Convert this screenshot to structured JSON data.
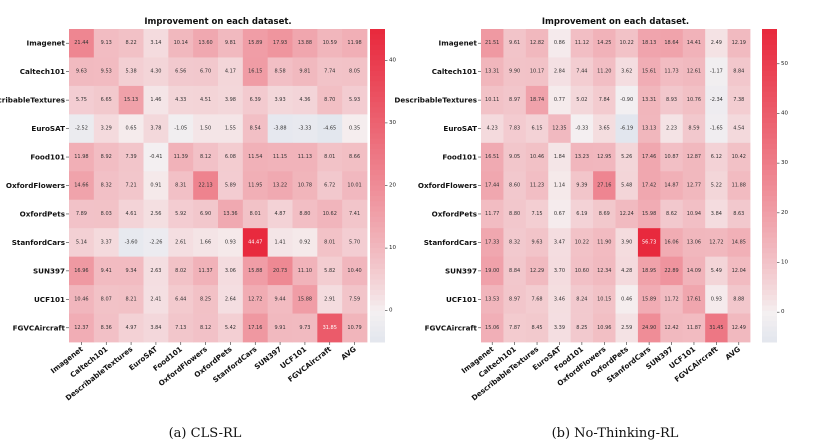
{
  "chart_data": [
    {
      "type": "heatmap",
      "title": "Improvement on each dataset.",
      "caption": "(a) CLS-RL",
      "rows": [
        "Imagenet",
        "Caltech101",
        "DescribableTextures",
        "EuroSAT",
        "Food101",
        "OxfordFlowers",
        "OxfordPets",
        "StanfordCars",
        "SUN397",
        "UCF101",
        "FGVCAircraft"
      ],
      "columns": [
        "Imagenet",
        "Caltech101",
        "DescribableTextures",
        "EuroSAT",
        "Food101",
        "OxfordFlowers",
        "OxfordPets",
        "StanfordCars",
        "SUN397",
        "UCF101",
        "FGVCAircraft",
        "AVG"
      ],
      "values": [
        [
          21.44,
          9.13,
          8.22,
          3.14,
          10.14,
          13.6,
          9.81,
          15.89,
          17.93,
          13.88,
          10.59,
          11.98
        ],
        [
          9.63,
          9.53,
          5.38,
          4.3,
          6.56,
          6.7,
          4.17,
          16.15,
          8.58,
          9.81,
          7.74,
          8.05
        ],
        [
          5.75,
          6.65,
          15.13,
          1.46,
          4.33,
          4.51,
          3.98,
          6.39,
          3.93,
          4.36,
          8.7,
          5.93
        ],
        [
          -2.52,
          3.29,
          0.65,
          3.78,
          -1.05,
          1.5,
          1.55,
          8.54,
          -3.88,
          -3.33,
          -4.65,
          0.35
        ],
        [
          11.98,
          8.92,
          7.39,
          -0.41,
          11.39,
          8.12,
          6.08,
          11.54,
          11.15,
          11.13,
          8.01,
          8.66
        ],
        [
          14.66,
          8.32,
          7.21,
          0.91,
          8.31,
          22.13,
          5.89,
          11.95,
          13.22,
          10.78,
          6.72,
          10.01
        ],
        [
          7.89,
          8.03,
          4.61,
          2.56,
          5.92,
          6.9,
          13.36,
          8.01,
          4.87,
          8.8,
          10.62,
          7.41
        ],
        [
          5.14,
          3.37,
          -3.6,
          -2.26,
          2.61,
          1.66,
          0.93,
          44.47,
          1.41,
          0.92,
          8.01,
          5.7
        ],
        [
          16.96,
          9.41,
          9.34,
          2.63,
          8.02,
          11.37,
          3.06,
          15.88,
          20.73,
          11.1,
          5.82,
          10.4
        ],
        [
          10.46,
          8.07,
          8.21,
          2.41,
          6.44,
          8.25,
          2.64,
          12.72,
          9.44,
          15.88,
          2.91,
          7.59
        ],
        [
          12.37,
          8.36,
          4.97,
          3.84,
          7.13,
          8.12,
          5.42,
          17.16,
          9.91,
          9.73,
          31.85,
          10.79
        ]
      ],
      "colorbar": {
        "min": -5,
        "max": 45,
        "ticks": [
          0,
          10,
          20,
          30,
          40
        ]
      },
      "colors": {
        "low": "#e2e6ee",
        "mid": "#f5f0f1",
        "high": "#e8283c"
      }
    },
    {
      "type": "heatmap",
      "title": "Improvement on each dataset.",
      "caption": "(b) No-Thinking-RL",
      "rows": [
        "Imagenet",
        "Caltech101",
        "DescribableTextures",
        "EuroSAT",
        "Food101",
        "OxfordFlowers",
        "OxfordPets",
        "StanfordCars",
        "SUN397",
        "UCF101",
        "FGVCAircraft"
      ],
      "columns": [
        "Imagenet",
        "Caltech101",
        "DescribableTextures",
        "EuroSAT",
        "Food101",
        "OxfordFlowers",
        "OxfordPets",
        "StanfordCars",
        "SUN397",
        "UCF101",
        "FGVCAircraft",
        "AVG"
      ],
      "values": [
        [
          21.51,
          9.61,
          12.82,
          0.86,
          11.12,
          14.25,
          10.22,
          18.13,
          18.64,
          14.41,
          2.49,
          12.19
        ],
        [
          13.31,
          9.9,
          10.17,
          2.84,
          7.44,
          11.2,
          3.62,
          15.61,
          11.73,
          12.61,
          -1.17,
          8.84
        ],
        [
          10.11,
          8.97,
          18.74,
          0.77,
          5.02,
          7.84,
          -0.9,
          13.31,
          8.93,
          10.76,
          -2.34,
          7.38
        ],
        [
          4.23,
          7.83,
          6.15,
          12.35,
          -0.33,
          3.65,
          -6.19,
          13.13,
          2.23,
          8.59,
          -1.65,
          4.54
        ],
        [
          16.51,
          9.05,
          10.46,
          1.84,
          13.23,
          12.95,
          5.26,
          17.46,
          10.87,
          12.87,
          6.12,
          10.42
        ],
        [
          17.44,
          8.6,
          11.23,
          1.14,
          9.39,
          27.16,
          5.48,
          17.42,
          14.87,
          12.77,
          5.22,
          11.88
        ],
        [
          11.77,
          8.8,
          7.15,
          0.67,
          6.19,
          8.69,
          12.24,
          15.98,
          8.62,
          10.94,
          3.84,
          8.63
        ],
        [
          17.33,
          8.32,
          9.63,
          3.47,
          10.22,
          11.9,
          3.9,
          56.73,
          16.06,
          13.06,
          12.72,
          14.85
        ],
        [
          19.0,
          8.84,
          12.29,
          3.7,
          10.6,
          12.34,
          4.28,
          18.95,
          22.89,
          14.09,
          5.49,
          12.04
        ],
        [
          13.53,
          8.97,
          7.68,
          3.46,
          8.24,
          10.15,
          0.46,
          15.89,
          11.72,
          17.61,
          0.93,
          8.88
        ],
        [
          15.06,
          7.87,
          8.45,
          3.39,
          8.25,
          10.96,
          2.59,
          24.9,
          12.42,
          11.87,
          31.45,
          12.49
        ]
      ],
      "colorbar": {
        "min": -6,
        "max": 57,
        "ticks": [
          0,
          10,
          20,
          30,
          40,
          50
        ]
      },
      "colors": {
        "low": "#e2e6ee",
        "mid": "#f5f0f1",
        "high": "#e8283c"
      }
    }
  ]
}
